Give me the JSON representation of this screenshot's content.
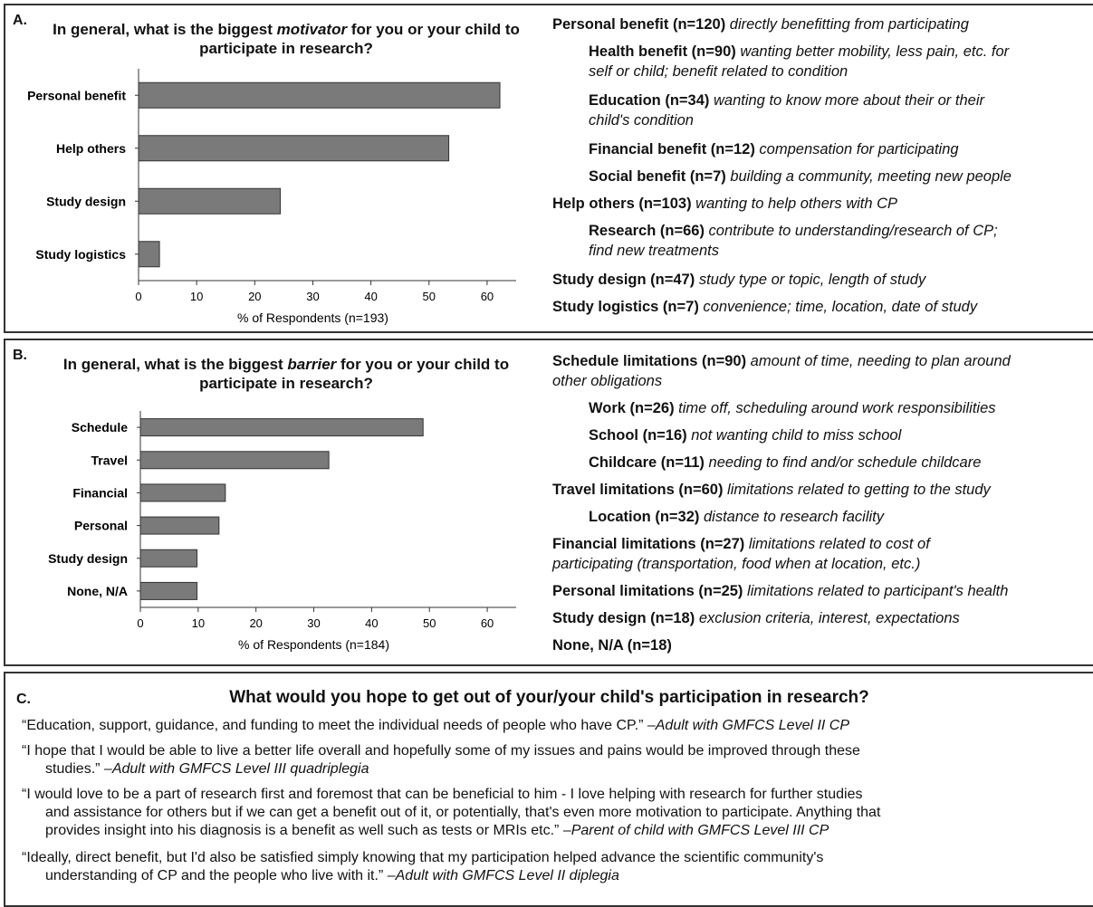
{
  "panels": {
    "a": {
      "label": "A.",
      "question_pre": "In general, what is the biggest ",
      "question_emph": "motivator",
      "question_post": " for you or your child to participate in research?",
      "legend": [
        {
          "indent": 0,
          "bold": "Personal benefit (n=120)",
          "desc": " directly benefitting from participating"
        },
        {
          "indent": 1,
          "bold": "Health benefit (n=90)",
          "desc": " wanting better mobility, less pain, etc. for",
          "desc2": "self or child; benefit related to condition"
        },
        {
          "indent": 1,
          "bold": "Education (n=34)",
          "desc": " wanting to know more about their or their",
          "desc2": "child's condition"
        },
        {
          "indent": 1,
          "bold": "Financial benefit (n=12)",
          "desc": " compensation for participating"
        },
        {
          "indent": 1,
          "bold": "Social benefit (n=7)",
          "desc": " building a community, meeting new people"
        },
        {
          "indent": 0,
          "bold": "Help others (n=103)",
          "desc": " wanting to help others with CP"
        },
        {
          "indent": 1,
          "bold": "Research (n=66)",
          "desc": " contribute to understanding/research of CP;",
          "desc2": "find new treatments"
        },
        {
          "indent": 0,
          "bold": "Study design (n=47)",
          "desc": " study type or topic, length of study"
        },
        {
          "indent": 0,
          "bold": "Study logistics (n=7)",
          "desc": " convenience; time, location, date of study"
        }
      ]
    },
    "b": {
      "label": "B.",
      "question_pre": "In general, what is the biggest ",
      "question_emph": "barrier",
      "question_post": " for you or your child to participate in research?",
      "legend": [
        {
          "indent": 0,
          "bold": "Schedule limitations (n=90)",
          "desc": " amount of time, needing to plan around",
          "desc2": "other obligations"
        },
        {
          "indent": 1,
          "bold": "Work (n=26)",
          "desc": " time off, scheduling around work responsibilities"
        },
        {
          "indent": 1,
          "bold": "School (n=16)",
          "desc": " not wanting child to miss school"
        },
        {
          "indent": 1,
          "bold": "Childcare (n=11)",
          "desc": " needing to find and/or schedule childcare"
        },
        {
          "indent": 0,
          "bold": "Travel limitations (n=60)",
          "desc": " limitations related to getting to the study"
        },
        {
          "indent": 1,
          "bold": "Location (n=32)",
          "desc": " distance to research facility"
        },
        {
          "indent": 0,
          "bold": "Financial limitations (n=27)",
          "desc": " limitations related to cost of",
          "desc2": "participating (transportation, food when at location, etc.)"
        },
        {
          "indent": 0,
          "bold": "Personal limitations (n=25)",
          "desc": " limitations related to participant's health"
        },
        {
          "indent": 0,
          "bold": "Study design (n=18)",
          "desc": " exclusion criteria, interest, expectations"
        },
        {
          "indent": 0,
          "bold": "None, N/A (n=18)",
          "desc": ""
        }
      ]
    },
    "c": {
      "label": "C.",
      "question": "What would you hope to get out of your/your child's participation in research?",
      "quotes": [
        {
          "lines": [
            "“Education, support, guidance, and funding to meet the individual needs of people who have CP.” "
          ],
          "attribution": "–Adult with GMFCS Level II CP"
        },
        {
          "lines": [
            "“I hope that I would be able to live a better life overall and hopefully some of my issues and pains would be improved through these",
            "studies.” "
          ],
          "attribution": "–Adult with GMFCS Level III quadriplegia"
        },
        {
          "lines": [
            "“I would love to be a part of research first and foremost that can be beneficial to him - I love helping with research for further studies",
            "and assistance for others but if we can get a benefit out of it, or potentially, that's even more motivation to participate. Anything that",
            "provides insight into his diagnosis is a benefit as well such as tests or MRIs etc.” "
          ],
          "attribution": "–Parent of child with GMFCS Level III CP"
        },
        {
          "lines": [
            "“Ideally, direct benefit, but I'd also be satisfied simply knowing that my participation helped advance the scientific community's",
            "understanding of CP and the people who live with it.” "
          ],
          "attribution": "–Adult with GMFCS Level II diplegia"
        }
      ]
    }
  },
  "chart_data": [
    {
      "type": "bar",
      "orientation": "horizontal",
      "title": "In general, what is the biggest motivator for you or your child to participate in research?",
      "categories": [
        "Personal benefit",
        "Help others",
        "Study design",
        "Study logistics"
      ],
      "values": [
        62.2,
        53.4,
        24.4,
        3.6
      ],
      "xlabel": "% of Respondents (n=193)",
      "ylabel": "",
      "xlim": [
        0,
        65
      ],
      "xticks": [
        0,
        10,
        20,
        30,
        40,
        50,
        60
      ],
      "bar_color": "#7a7a7a"
    },
    {
      "type": "bar",
      "orientation": "horizontal",
      "title": "In general, what is the biggest barrier for you or your child to participate in research?",
      "categories": [
        "Schedule",
        "Travel",
        "Financial",
        "Personal",
        "Study design",
        "None, N/A"
      ],
      "values": [
        48.9,
        32.6,
        14.7,
        13.6,
        9.8,
        9.8
      ],
      "xlabel": "% of Respondents (n=184)",
      "ylabel": "",
      "xlim": [
        0,
        65
      ],
      "xticks": [
        0,
        10,
        20,
        30,
        40,
        50,
        60
      ],
      "bar_color": "#7a7a7a"
    }
  ]
}
